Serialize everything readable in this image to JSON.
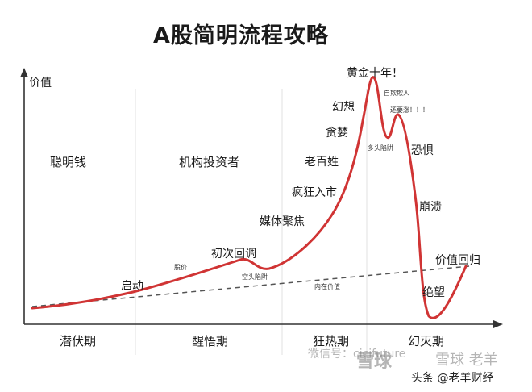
{
  "title": "A股简明流程攻略",
  "y_axis_label": "价值",
  "phases": [
    "聪明钱",
    "机构投资者"
  ],
  "periods": [
    "潜伏期",
    "醒悟期",
    "狂热期",
    "幻灭期"
  ],
  "curve_labels": {
    "qidong": "启动",
    "shaixuan": "股价",
    "chuci_huice": "初次回调",
    "kongtou": "空头陷阱",
    "meiti": "媒体聚焦",
    "fengkuang": "疯狂入市",
    "laobaixing": "老百姓",
    "tanlan": "贪婪",
    "huanxiang": "幻想",
    "huangjin": "黄金十年！",
    "ziqi": "自欺欺人",
    "duotou": "多头陷阱",
    "haiyouzhang": "还要涨！！！",
    "kongju": "恐惧",
    "bengkui": "崩溃",
    "neizai": "内在价值",
    "jiazhi_huigui": "价值回归",
    "juewang": "绝望"
  },
  "watermarks": {
    "weixin": "微信号：cicifuture",
    "xueqiu": "雪球",
    "brand": "头条 @老羊财经",
    "xueqiu_user": "雪球 老羊"
  },
  "colors": {
    "curve": "#d03434",
    "trend": "#555555",
    "axis": "#333333"
  }
}
